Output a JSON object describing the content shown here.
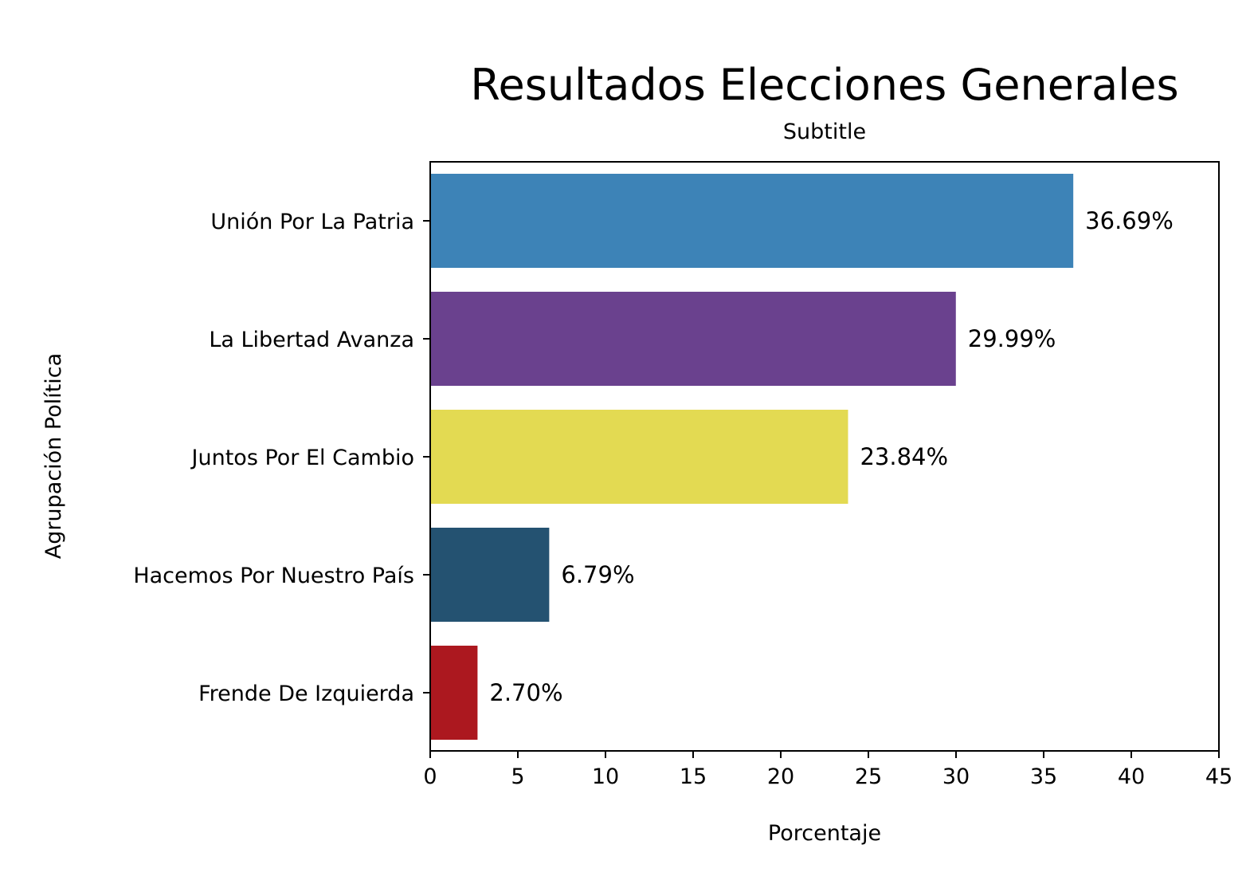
{
  "chart_data": {
    "type": "bar",
    "orientation": "horizontal",
    "title": "Resultados Elecciones Generales",
    "subtitle": "Subtitle",
    "xlabel": "Porcentaje",
    "ylabel": "Agrupación Política",
    "xlim": [
      0,
      45
    ],
    "x_ticks": [
      "0",
      "5",
      "10",
      "15",
      "20",
      "25",
      "30",
      "35",
      "40",
      "45"
    ],
    "grid": false,
    "categories": [
      "Unión Por La Patria",
      "La Libertad Avanza",
      "Juntos Por El Cambio",
      "Hacemos Por Nuestro País",
      "Frende De Izquierda"
    ],
    "values": [
      36.69,
      29.99,
      23.84,
      6.79,
      2.7
    ],
    "value_labels": [
      "36.69%",
      "29.99%",
      "23.84%",
      "6.79%",
      "2.70%"
    ],
    "colors": [
      "#3d83b7",
      "#6a418e",
      "#e3da52",
      "#245271",
      "#ac181f"
    ]
  }
}
